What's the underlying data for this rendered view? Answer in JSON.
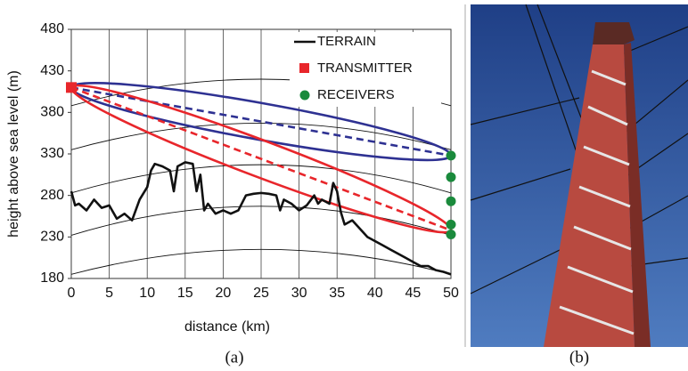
{
  "chart_data": {
    "type": "line",
    "x_label": "distance (km)",
    "y_label": "height above sea level (m)",
    "xlim": [
      0,
      50
    ],
    "xticks": [
      0,
      5,
      10,
      15,
      20,
      25,
      30,
      35,
      40,
      45,
      50
    ],
    "ylim": [
      180,
      480
    ],
    "yticks": [
      180,
      230,
      280,
      330,
      380,
      430,
      480
    ],
    "grid": "x",
    "terrain": {
      "name": "TERRAIN",
      "color": "#111111",
      "x": [
        0,
        0.5,
        1,
        2,
        3,
        4,
        5,
        6,
        7,
        8,
        9,
        10,
        10.5,
        11,
        12,
        13,
        13.5,
        14,
        15,
        16,
        16.5,
        17,
        17.5,
        18,
        19,
        20,
        21,
        22,
        23,
        24,
        25,
        26,
        27,
        27.5,
        28,
        29,
        30,
        31,
        32,
        32.5,
        33,
        34,
        34.5,
        35,
        35.5,
        36,
        37,
        38,
        39,
        40,
        41,
        42,
        43,
        44,
        45,
        46,
        47,
        48,
        49,
        50
      ],
      "values": [
        285,
        268,
        270,
        262,
        275,
        265,
        268,
        252,
        258,
        250,
        275,
        290,
        310,
        318,
        315,
        310,
        285,
        315,
        320,
        318,
        285,
        305,
        262,
        270,
        258,
        262,
        258,
        262,
        280,
        282,
        283,
        282,
        280,
        262,
        275,
        270,
        262,
        268,
        280,
        270,
        275,
        270,
        295,
        285,
        260,
        245,
        250,
        240,
        230,
        225,
        220,
        215,
        210,
        205,
        200,
        195,
        195,
        190,
        188,
        185
      ]
    },
    "transmitter": {
      "name": "TRANSMITTER",
      "color": "#e8262b",
      "x": 0,
      "value": 410
    },
    "receivers": {
      "name": "RECEIVERS",
      "color": "#1a8a3c",
      "x": 50,
      "values": [
        328,
        302,
        273,
        245,
        233
      ]
    },
    "links": [
      {
        "color": "#2e3192",
        "to": 328,
        "radius": 22
      },
      {
        "color": "#e8262b",
        "to": 238,
        "radius": 22
      }
    ],
    "reference_arcs": {
      "color": "#111111",
      "x": [
        0,
        25,
        50
      ],
      "series": [
        [
          185,
          215,
          185
        ],
        [
          232,
          267,
          232
        ],
        [
          283,
          317,
          283
        ],
        [
          335,
          367,
          335
        ],
        [
          388,
          420,
          388
        ]
      ]
    }
  },
  "captions": {
    "a": "(a)",
    "b": "(b)"
  }
}
